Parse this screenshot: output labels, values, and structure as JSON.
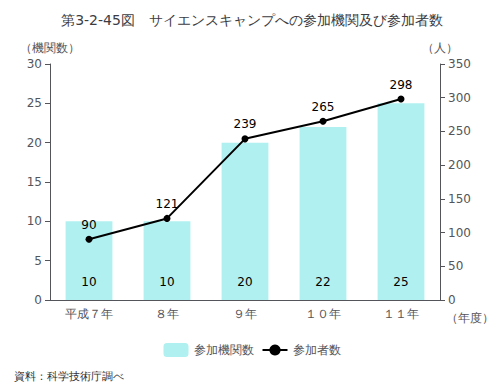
{
  "chart_data": {
    "type": "bar",
    "title": "第3-2-45図　サイエンスキャンプへの参加機関及び参加者数",
    "categories": [
      "平成７年",
      "８年",
      "９年",
      "１０年",
      "１１年"
    ],
    "series": [
      {
        "name": "参加機関数",
        "type": "bar",
        "color": "#b0f0f0",
        "values": [
          10,
          10,
          20,
          22,
          25
        ]
      },
      {
        "name": "参加者数",
        "type": "line",
        "color": "#000000",
        "marker": "circle",
        "axis": "y2",
        "values": [
          90,
          121,
          239,
          265,
          298
        ]
      }
    ],
    "ylabel": "（機関数）",
    "y2label": "（人）",
    "xlabel": "（年度）",
    "ylim": [
      0,
      30
    ],
    "yticks": [
      0,
      5,
      10,
      15,
      20,
      25,
      30
    ],
    "y2lim": [
      0,
      350
    ],
    "y2ticks": [
      0,
      50,
      100,
      150,
      200,
      250,
      300,
      350
    ],
    "data_labels": true,
    "grid": false,
    "legend": "bottom",
    "annotations": [
      "資料：科学技術庁調べ"
    ]
  }
}
